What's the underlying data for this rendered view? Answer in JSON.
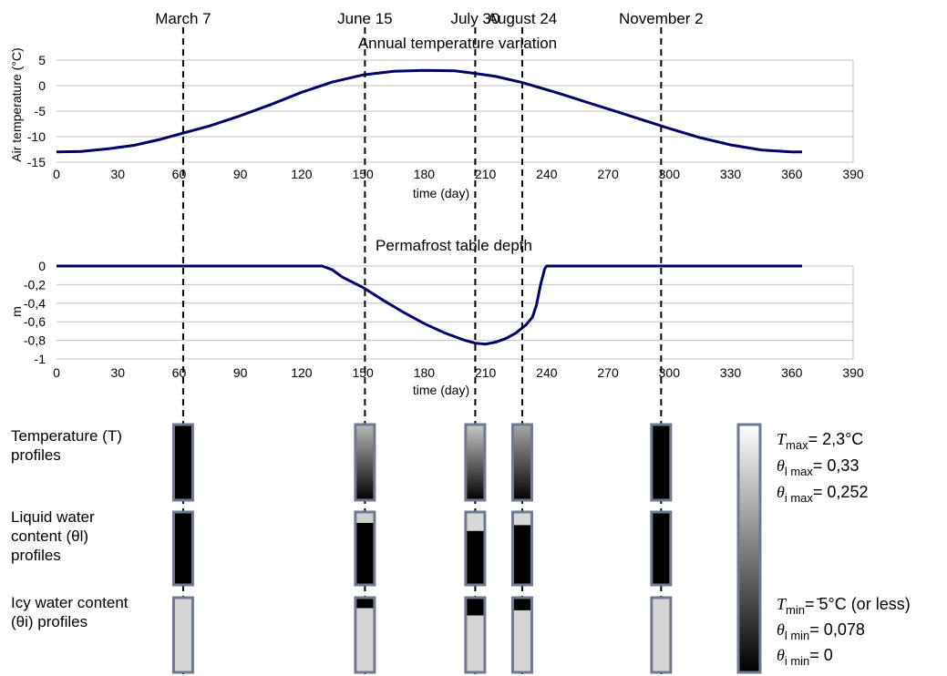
{
  "date_markers": [
    {
      "label": "March 7",
      "day": 62
    },
    {
      "label": "June 15",
      "day": 151
    },
    {
      "label": "July 30",
      "day": 205
    },
    {
      "label": "August 24",
      "day": 228
    },
    {
      "label": "November 2",
      "day": 296
    }
  ],
  "chart_data": [
    {
      "type": "line",
      "title": "Annual temperature variation",
      "xlabel": "time (day)",
      "ylabel": "Air temperature (°C)",
      "xlim": [
        0,
        390
      ],
      "ylim": [
        -15,
        5
      ],
      "xticks": [
        "0",
        "30",
        "60",
        "90",
        "120",
        "150",
        "180",
        "210",
        "240",
        "270",
        "300",
        "330",
        "360",
        "390"
      ],
      "yticks": [
        "5",
        "0",
        "-5",
        "-10",
        "-15"
      ],
      "ytick_values": [
        5,
        0,
        -5,
        -10,
        -15
      ],
      "grid": true,
      "line_color": "#000066",
      "series": [
        {
          "x": [
            0,
            12,
            25,
            38,
            50,
            62,
            75,
            90,
            105,
            120,
            135,
            150,
            165,
            180,
            195,
            205,
            215,
            228,
            245,
            260,
            275,
            290,
            300,
            315,
            330,
            345,
            360,
            365
          ],
          "y": [
            -13.0,
            -12.9,
            -12.4,
            -11.7,
            -10.6,
            -9.3,
            -7.9,
            -5.9,
            -3.7,
            -1.3,
            0.7,
            2.1,
            2.8,
            3.0,
            2.9,
            2.4,
            1.8,
            0.6,
            -1.4,
            -3.3,
            -5.2,
            -7.1,
            -8.4,
            -10.2,
            -11.6,
            -12.6,
            -13.0,
            -13.0
          ]
        }
      ]
    },
    {
      "type": "line",
      "title": "Permafrost table depth",
      "xlabel": "time (day)",
      "ylabel": "m",
      "xlim": [
        0,
        390
      ],
      "ylim": [
        -1,
        0
      ],
      "xticks": [
        "0",
        "30",
        "60",
        "90",
        "120",
        "150",
        "180",
        "210",
        "240",
        "270",
        "300",
        "330",
        "360",
        "390"
      ],
      "yticks": [
        "0",
        "-0,2",
        "-0,4",
        "-0,6",
        "-0,8",
        "-1"
      ],
      "ytick_values": [
        0,
        -0.2,
        -0.4,
        -0.6,
        -0.8,
        -1
      ],
      "grid": true,
      "line_color": "#000066",
      "series": [
        {
          "x": [
            0,
            130,
            135,
            140,
            150,
            160,
            170,
            180,
            190,
            200,
            205,
            210,
            215,
            220,
            225,
            230,
            233,
            235,
            237,
            239,
            240,
            244,
            365
          ],
          "y": [
            0,
            0,
            -0.04,
            -0.12,
            -0.23,
            -0.37,
            -0.5,
            -0.62,
            -0.72,
            -0.8,
            -0.83,
            -0.84,
            -0.82,
            -0.78,
            -0.72,
            -0.63,
            -0.55,
            -0.42,
            -0.2,
            -0.03,
            0,
            0,
            0
          ]
        }
      ]
    }
  ],
  "profiles": {
    "rows": [
      {
        "label_lines": [
          "Temperature (T)",
          "profiles"
        ],
        "symbol": "T"
      },
      {
        "label_lines": [
          "Liquid water",
          "content (θl)",
          "profiles"
        ],
        "symbol": "θl"
      },
      {
        "label_lines": [
          "Icy water content",
          "(θi) profiles"
        ],
        "symbol": "θi"
      }
    ],
    "columns": [
      {
        "date": "March 7",
        "temperature": {
          "style": "solid",
          "color": "#000000"
        },
        "liquid": {
          "style": "solid",
          "color": "#000000"
        },
        "icy": {
          "style": "solid",
          "color": "#d4d4d4"
        }
      },
      {
        "date": "June 15",
        "temperature": {
          "style": "gradient",
          "top": "#b8b8b8",
          "bottom": "#000000"
        },
        "liquid": {
          "style": "split",
          "top_color": "#d0d0d0",
          "bottom_color": "#000000",
          "split_fraction": 0.15
        },
        "icy": {
          "style": "split",
          "top_color": "#000000",
          "bottom_color": "#d4d4d4",
          "split_fraction": 0.14
        }
      },
      {
        "date": "July 30",
        "temperature": {
          "style": "gradient",
          "top": "#c8c8c8",
          "bottom": "#000000"
        },
        "liquid": {
          "style": "split",
          "top_color": "#d8d8d8",
          "bottom_color": "#000000",
          "split_fraction": 0.26
        },
        "icy": {
          "style": "split",
          "top_color": "#000000",
          "bottom_color": "#d4d4d4",
          "split_fraction": 0.24
        }
      },
      {
        "date": "August 24",
        "temperature": {
          "style": "gradient",
          "top": "#a8a8a8",
          "bottom": "#000000"
        },
        "liquid": {
          "style": "split",
          "top_color": "#d8d8d8",
          "bottom_color": "#000000",
          "split_fraction": 0.18
        },
        "icy": {
          "style": "split",
          "top_color": "#000000",
          "bottom_color": "#d4d4d4",
          "split_fraction": 0.17
        }
      },
      {
        "date": "November 2",
        "temperature": {
          "style": "solid",
          "color": "#000000"
        },
        "liquid": {
          "style": "solid",
          "color": "#000000"
        },
        "icy": {
          "style": "solid",
          "color": "#d4d4d4"
        }
      }
    ]
  },
  "legend": {
    "max_lines": [
      {
        "symbol": "T",
        "sub": "max",
        "value": "= 2,3°C"
      },
      {
        "symbol": "θ",
        "sub": "l max",
        "value": "= 0,33"
      },
      {
        "symbol": "θ",
        "sub": "i max",
        "value": "= 0,252"
      }
    ],
    "min_lines": [
      {
        "symbol": "T",
        "sub": "min",
        "value": "= ̄5°C (or less)"
      },
      {
        "symbol": "θ",
        "sub": "l min",
        "value": "= 0,078"
      },
      {
        "symbol": "θ",
        "sub": "i min",
        "value": "= 0"
      }
    ],
    "gradient_top": "#ffffff",
    "gradient_bottom": "#000000"
  },
  "colors": {
    "series_line": "#000066",
    "grid": "#c0c0c0",
    "bar_border": "#6f7a90"
  }
}
